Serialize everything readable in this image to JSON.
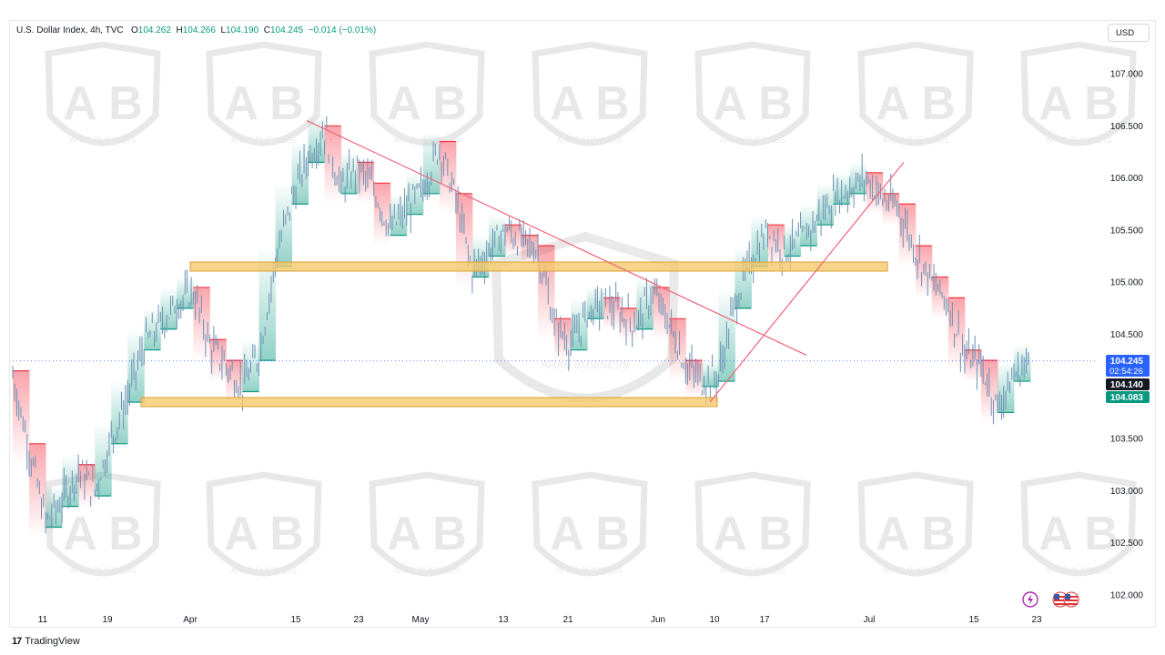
{
  "header": {
    "symbol": "U.S. Dollar Index, 4h, TVC",
    "open_label": "O",
    "open": "104.262",
    "high_label": "H",
    "high": "104.266",
    "low_label": "L",
    "low": "104.190",
    "close_label": "C",
    "close": "104.245",
    "change": "−0.014 (−0.01%)"
  },
  "currency_button": "USD",
  "footer": {
    "brand": "TradingView"
  },
  "watermark": {
    "text": "ARAB BUSINESS"
  },
  "colors": {
    "bull": "#089981",
    "bear": "#f23645",
    "candles": "#6b8fb3",
    "zone_fill": "#f5c96a",
    "zone_stroke": "#d9a13a",
    "trendline": "#f06478",
    "last_price_badge": "#2962ff",
    "prev_close_badge": "#131722",
    "bid_badge": "#089981"
  },
  "price_labels": {
    "last": "104.245",
    "countdown": "02:54:26",
    "prev": "104.140",
    "lower": "104.083"
  },
  "chart_data": {
    "type": "candlestick",
    "symbol": "U.S. Dollar Index",
    "timeframe": "4h",
    "x_ticks": [
      "11",
      "19",
      "Apr",
      "15",
      "23",
      "May",
      "13",
      "21",
      "Jun",
      "10",
      "17",
      "Jul",
      "15",
      "23"
    ],
    "y_ticks": [
      "107.000",
      "106.500",
      "106.000",
      "105.500",
      "105.000",
      "104.500",
      "104.000",
      "103.500",
      "103.000",
      "102.500",
      "102.000"
    ],
    "ylim": [
      102.0,
      107.0
    ],
    "price_path": [
      [
        "11",
        104.1
      ],
      [
        "12",
        103.4
      ],
      [
        "13",
        102.7
      ],
      [
        "15",
        102.9
      ],
      [
        "18",
        103.2
      ],
      [
        "19",
        103.0
      ],
      [
        "21",
        103.5
      ],
      [
        "23",
        103.9
      ],
      [
        "26",
        104.4
      ],
      [
        "29",
        104.6
      ],
      [
        "Apr",
        104.8
      ],
      [
        "3",
        104.9
      ],
      [
        "5",
        104.4
      ],
      [
        "7",
        104.2
      ],
      [
        "9",
        104.0
      ],
      [
        "11",
        104.3
      ],
      [
        "12",
        105.2
      ],
      [
        "13",
        105.8
      ],
      [
        "15",
        106.2
      ],
      [
        "16",
        106.45
      ],
      [
        "18",
        105.9
      ],
      [
        "20",
        106.1
      ],
      [
        "23",
        105.9
      ],
      [
        "25",
        105.5
      ],
      [
        "27",
        105.7
      ],
      [
        "30",
        105.9
      ],
      [
        "May",
        106.3
      ],
      [
        "2",
        105.8
      ],
      [
        "3",
        105.1
      ],
      [
        "6",
        105.3
      ],
      [
        "8",
        105.5
      ],
      [
        "10",
        105.4
      ],
      [
        "13",
        105.3
      ],
      [
        "15",
        104.6
      ],
      [
        "17",
        104.4
      ],
      [
        "21",
        104.7
      ],
      [
        "23",
        104.8
      ],
      [
        "25",
        104.7
      ],
      [
        "28",
        104.6
      ],
      [
        "30",
        104.9
      ],
      [
        "Jun",
        104.6
      ],
      [
        "4",
        104.2
      ],
      [
        "6",
        104.05
      ],
      [
        "8",
        104.1
      ],
      [
        "10",
        104.8
      ],
      [
        "12",
        105.2
      ],
      [
        "14",
        105.5
      ],
      [
        "17",
        105.3
      ],
      [
        "19",
        105.4
      ],
      [
        "21",
        105.6
      ],
      [
        "24",
        105.8
      ],
      [
        "26",
        105.9
      ],
      [
        "28",
        106.0
      ],
      [
        "Jul",
        105.8
      ],
      [
        "2",
        105.7
      ],
      [
        "4",
        105.3
      ],
      [
        "8",
        105.0
      ],
      [
        "10",
        104.8
      ],
      [
        "12",
        104.3
      ],
      [
        "15",
        104.2
      ],
      [
        "17",
        103.8
      ],
      [
        "19",
        104.1
      ],
      [
        "22",
        104.245
      ]
    ],
    "horizontal_zones": [
      {
        "from": "Apr",
        "to": "Jul",
        "price": 105.15
      },
      {
        "from": "19",
        "to": "Jun",
        "price": 103.85
      }
    ],
    "trendlines": [
      {
        "from": [
          "16 Apr",
          106.55
        ],
        "to": [
          "19 Jun",
          104.3
        ]
      },
      {
        "from": [
          "6 Jun",
          103.85
        ],
        "to": [
          "Jul",
          106.15
        ]
      }
    ],
    "last_price": 104.245,
    "countdown": "02:54:26",
    "grid": false,
    "legend": "none"
  }
}
